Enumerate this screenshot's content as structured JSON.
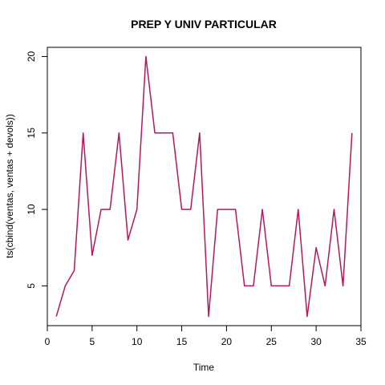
{
  "chart_data": {
    "type": "line",
    "title": "PREP Y UNIV PARTICULAR",
    "xlabel": "Time",
    "ylabel": "ts(cbind(ventas, ventas + devols))",
    "xlim": [
      0,
      35
    ],
    "ylim": [
      2.4,
      20.6
    ],
    "x_ticks": [
      0,
      5,
      10,
      15,
      20,
      25,
      30,
      35
    ],
    "y_ticks": [
      5,
      10,
      15,
      20
    ],
    "grid": false,
    "legend": "none",
    "series": [
      {
        "color": "#b5175f",
        "x": [
          1,
          2,
          3,
          4,
          5,
          6,
          7,
          8,
          9,
          10,
          11,
          12,
          13,
          14,
          15,
          16,
          17,
          18,
          19,
          20,
          21,
          22,
          23,
          24,
          25,
          26,
          27,
          28,
          29,
          30,
          31,
          32,
          33,
          34
        ],
        "values": [
          3,
          5,
          6,
          15,
          7,
          10,
          10,
          15,
          8,
          10,
          20,
          15,
          15,
          15,
          10,
          10,
          15,
          3,
          10,
          10,
          10,
          5,
          5,
          10,
          5,
          5,
          5,
          10,
          3,
          7.5,
          5,
          10,
          5,
          15
        ]
      }
    ]
  }
}
